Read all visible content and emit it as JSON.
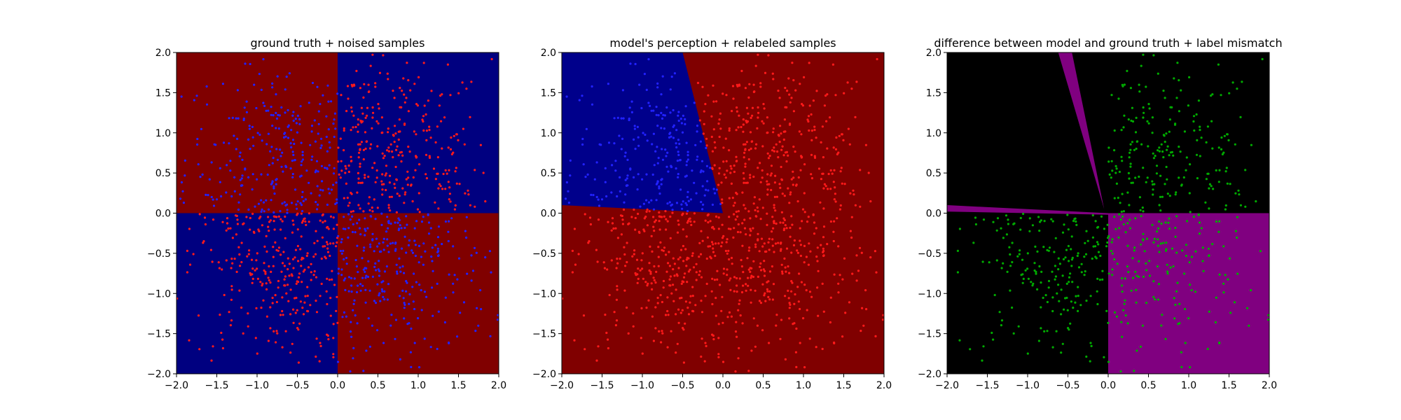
{
  "figure": {
    "colors": {
      "blue_region": "#000080",
      "red_region": "#800000",
      "blue_point": "#2222ff",
      "red_point": "#ff1a1a",
      "green_point": "#00aa00",
      "black_region": "#000000",
      "magenta_region": "#800080",
      "blue_region_model": "#00008b"
    }
  },
  "chart_data": [
    {
      "type": "scatter",
      "title": "ground truth + noised samples",
      "xlabel": "",
      "ylabel": "",
      "xlim": [
        -2.0,
        2.0
      ],
      "ylim": [
        -2.0,
        2.0
      ],
      "xticks": [
        "−2.0",
        "−1.5",
        "−1.0",
        "−0.5",
        "0.0",
        "0.5",
        "1.0",
        "1.5",
        "2.0"
      ],
      "yticks": [
        "2.0",
        "1.5",
        "1.0",
        "0.5",
        "0.0",
        "−0.5",
        "−1.0",
        "−1.5",
        "−2.0"
      ],
      "background": "ground-truth checkerboard: top-left red, top-right blue, bottom-left blue, bottom-right red",
      "point_label_rule": "labels flipped (noised): points in red regions drawn blue, points in blue regions drawn red",
      "n_points_approx": 1200,
      "grid": false
    },
    {
      "type": "scatter",
      "title": "model's perception + relabeled samples",
      "xlabel": "",
      "ylabel": "",
      "xlim": [
        -2.0,
        2.0
      ],
      "ylim": [
        -2.0,
        2.0
      ],
      "xticks": [
        "−2.0",
        "−1.5",
        "−1.0",
        "−0.5",
        "0.0",
        "0.5",
        "1.0",
        "1.5",
        "2.0"
      ],
      "yticks": [
        "2.0",
        "1.5",
        "1.0",
        "0.5",
        "0.0",
        "−0.5",
        "−1.0",
        "−1.5",
        "−2.0"
      ],
      "background": "model prediction: blue wedge in upper-left quadrant (bounded by line from (0,0) to (-2,0.1) and line from (0,0) to (-0.5,2)), red elsewhere",
      "point_label_rule": "points relabeled by model: blue inside wedge, red outside",
      "grid": false
    },
    {
      "type": "scatter",
      "title": "difference between model and ground truth + label mismatch",
      "xlabel": "",
      "ylabel": "",
      "xlim": [
        -2.0,
        2.0
      ],
      "ylim": [
        -2.0,
        2.0
      ],
      "xticks": [
        "−2.0",
        "−1.5",
        "−1.0",
        "−0.5",
        "0.0",
        "0.5",
        "1.0",
        "1.5",
        "2.0"
      ],
      "yticks": [
        "2.0",
        "1.5",
        "1.0",
        "0.5",
        "0.0",
        "−0.5",
        "−1.0",
        "−1.5",
        "−2.0"
      ],
      "background": "black where model agrees with ground truth, magenta where it differs (bottom-right quadrant, thin slivers near wedge boundaries)",
      "point_label_rule": "green points mark label mismatches (top-right and bottom-left quadrants)",
      "grid": false
    }
  ]
}
